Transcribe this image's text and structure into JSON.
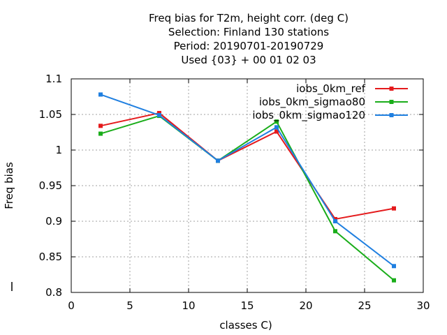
{
  "chart_data": {
    "type": "line",
    "title_lines": [
      "Freq bias  for T2m, height corr. (deg C)",
      "Selection: Finland     130 stations",
      "Period: 20190701-20190729",
      "Used {03} + 00 01 02 03"
    ],
    "xlabel": "classes C)",
    "ylabel": "Freq bias",
    "xlim": [
      0,
      30
    ],
    "ylim": [
      0.8,
      1.1
    ],
    "xticks": [
      "0",
      "5",
      "10",
      "15",
      "20",
      "25",
      "30"
    ],
    "yticks": [
      "0.8",
      "0.85",
      "0.9",
      "0.95",
      "1",
      "1.05",
      "1.1"
    ],
    "grid": true,
    "legend_position": "top-right",
    "x": [
      2.5,
      7.5,
      12.5,
      17.5,
      22.5,
      27.5
    ],
    "series": [
      {
        "name": "iobs_0km_ref",
        "color": "#e41a1c",
        "values": [
          1.034,
          1.052,
          0.985,
          1.026,
          0.903,
          0.918
        ]
      },
      {
        "name": "iobs_0km_sigmao80",
        "color": "#1aad1a",
        "values": [
          1.023,
          1.048,
          0.985,
          1.04,
          0.886,
          0.817
        ]
      },
      {
        "name": "iobs_0km_sigmao120",
        "color": "#1f7fe0",
        "values": [
          1.078,
          1.049,
          0.985,
          1.032,
          0.9,
          0.837
        ]
      }
    ]
  }
}
